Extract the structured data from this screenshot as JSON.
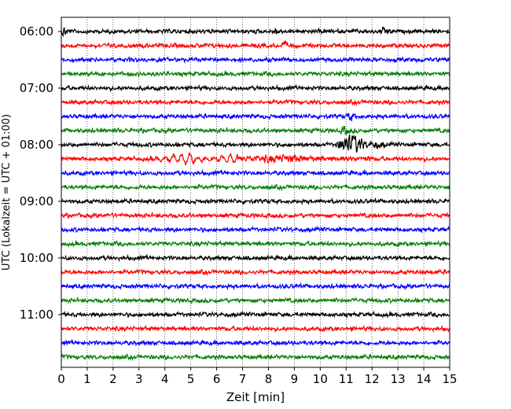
{
  "chart_data": {
    "type": "line",
    "title": "",
    "xlabel": "Zeit  [min]",
    "ylabel": "UTC (Lokalzeit = UTC + 01:00)",
    "xlim": [
      0,
      15
    ],
    "x_ticks": [
      "0",
      "1",
      "2",
      "3",
      "4",
      "5",
      "6",
      "7",
      "8",
      "9",
      "10",
      "11",
      "12",
      "13",
      "14",
      "15"
    ],
    "y_ticks": [
      "06:00",
      "07:00",
      "08:00",
      "09:00",
      "10:00",
      "11:00"
    ],
    "grid": "vertical dotted at each minute",
    "trace_colors": [
      "#000000",
      "#ff0000",
      "#0000ff",
      "#008000"
    ],
    "rows": 24,
    "row_interval_min": 15,
    "start_time": "06:00",
    "noise_amplitude_fraction_of_row": 0.07,
    "events": [
      {
        "row": 0,
        "start_min": 0.0,
        "end_min": 0.3,
        "amplitude": 0.35,
        "note": "small offset at trace start"
      },
      {
        "row": 0,
        "start_min": 8.2,
        "end_min": 8.6,
        "amplitude": 0.25
      },
      {
        "row": 0,
        "start_min": 12.3,
        "end_min": 12.8,
        "amplitude": 0.25
      },
      {
        "row": 1,
        "start_min": 8.5,
        "end_min": 8.9,
        "amplitude": 0.25
      },
      {
        "row": 6,
        "start_min": 11.0,
        "end_min": 11.5,
        "amplitude": 0.3
      },
      {
        "row": 7,
        "start_min": 10.8,
        "end_min": 11.3,
        "amplitude": 0.3
      },
      {
        "row": 8,
        "start_min": 10.6,
        "end_min": 12.5,
        "amplitude": 0.7,
        "note": "local earthquake signal"
      },
      {
        "row": 9,
        "start_min": 3.5,
        "end_min": 6.8,
        "amplitude": 0.45,
        "note": "oscillating surface-wave train"
      },
      {
        "row": 9,
        "start_min": 6.8,
        "end_min": 12.0,
        "amplitude": 0.2
      }
    ],
    "series": [
      {
        "values_description": "row 0 starts 06:00"
      },
      {
        "values_description": "rows repeat black, red, blue, green every 15 min"
      }
    ]
  }
}
